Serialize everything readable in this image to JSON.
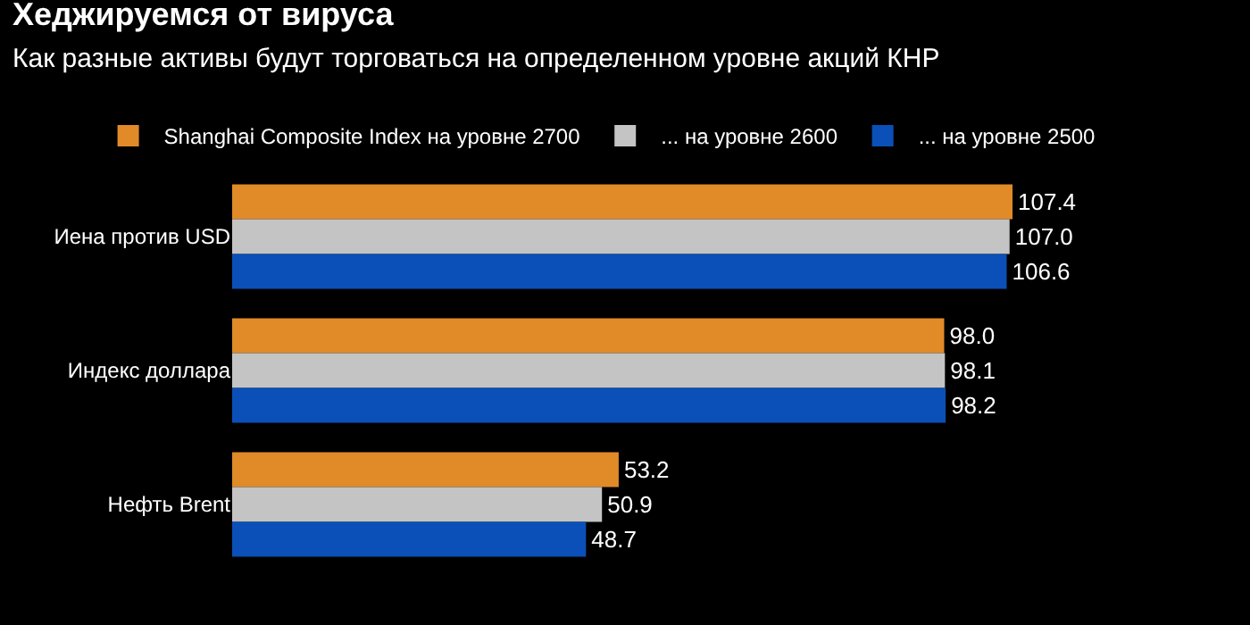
{
  "chart_data": {
    "type": "bar",
    "orientation": "horizontal",
    "title": "Хеджируемся от вируса",
    "subtitle": "Как разные активы будут торговаться на определенном уровне акций КНР",
    "categories": [
      "Иена против USD",
      "Индекс доллара",
      "Нефть Brent"
    ],
    "series": [
      {
        "name": "Shanghai Composite Index на уровне 2700",
        "color": "#e08a28",
        "values": [
          107.4,
          98.0,
          53.2
        ],
        "value_labels": [
          "107.4",
          "98.0",
          "53.2"
        ]
      },
      {
        "name": "... на уровне 2600",
        "color": "#c4c4c4",
        "values": [
          107.0,
          98.1,
          50.9
        ],
        "value_labels": [
          "107.0",
          "98.1",
          "50.9"
        ]
      },
      {
        "name": "... на уровне 2500",
        "color": "#0a50b8",
        "values": [
          106.6,
          98.2,
          48.7
        ],
        "value_labels": [
          "106.6",
          "98.2",
          "48.7"
        ]
      }
    ],
    "tick_labels": "y",
    "legend": "top left",
    "grid": false
  }
}
